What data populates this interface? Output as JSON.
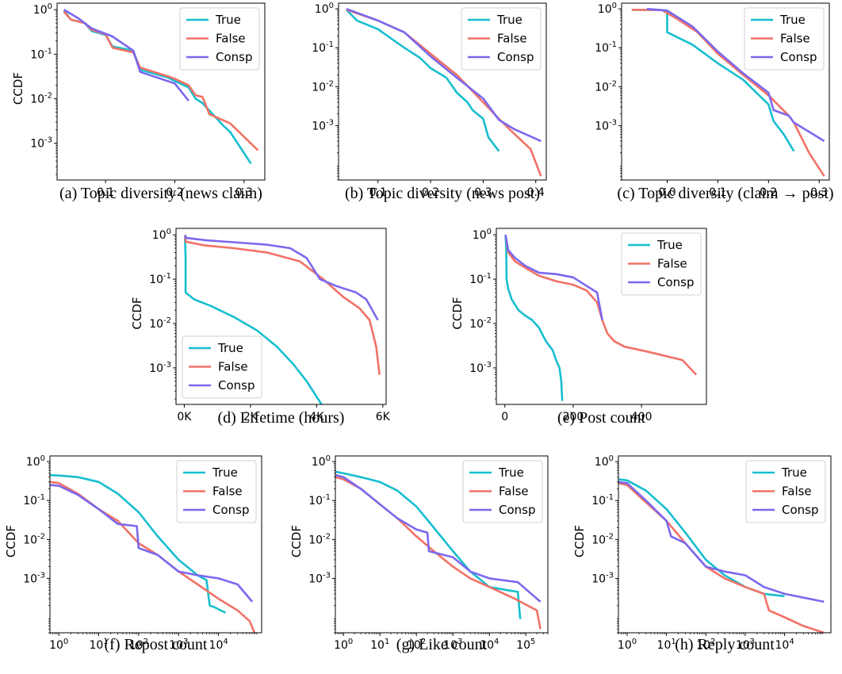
{
  "colors": {
    "True": "#17becf",
    "False": "#f27166",
    "Consp": "#7b68ee"
  },
  "legend_labels": [
    "True",
    "False",
    "Consp"
  ],
  "chart_data": [
    {
      "id": "a",
      "type": "line",
      "caption": "(a) Topic diversity (news claim)",
      "ylabel": "CCDF",
      "xscale": "linear",
      "yscale": "log",
      "xlim": [
        0.03,
        0.33
      ],
      "ylim": [
        0.00015,
        1.4
      ],
      "xticks": [
        0.1,
        0.2,
        0.3
      ],
      "xticklabels": [
        "0.1",
        "0.2",
        "0.3"
      ],
      "yticks": [
        1,
        0.1,
        0.01,
        0.001
      ],
      "yticklabels": [
        "10^0",
        "10^-1",
        "10^-2",
        "10^-3"
      ],
      "legend": "top-right",
      "series": [
        {
          "name": "True",
          "x": [
            0.04,
            0.05,
            0.07,
            0.08,
            0.1,
            0.11,
            0.14,
            0.15,
            0.19,
            0.2,
            0.22,
            0.23,
            0.24,
            0.27,
            0.28,
            0.31
          ],
          "y": [
            0.95,
            0.6,
            0.5,
            0.33,
            0.27,
            0.15,
            0.12,
            0.045,
            0.03,
            0.025,
            0.018,
            0.01,
            0.008,
            0.0025,
            0.0018,
            0.00035
          ]
        },
        {
          "name": "False",
          "x": [
            0.04,
            0.05,
            0.07,
            0.08,
            0.1,
            0.11,
            0.14,
            0.15,
            0.19,
            0.2,
            0.22,
            0.23,
            0.24,
            0.25,
            0.28,
            0.32
          ],
          "y": [
            0.9,
            0.6,
            0.5,
            0.35,
            0.28,
            0.14,
            0.11,
            0.05,
            0.032,
            0.028,
            0.02,
            0.012,
            0.011,
            0.0045,
            0.0028,
            0.0007
          ]
        },
        {
          "name": "Consp",
          "x": [
            0.04,
            0.06,
            0.08,
            0.11,
            0.14,
            0.15,
            0.18,
            0.2,
            0.22
          ],
          "y": [
            1.0,
            0.65,
            0.38,
            0.25,
            0.12,
            0.04,
            0.028,
            0.022,
            0.009
          ]
        }
      ]
    },
    {
      "id": "b",
      "type": "line",
      "caption": "(b) Topic diversity (news post)",
      "ylabel": "",
      "xscale": "linear",
      "yscale": "log",
      "xlim": [
        0.025,
        0.42
      ],
      "ylim": [
        4e-05,
        1.4
      ],
      "xticks": [
        0.1,
        0.2,
        0.3,
        0.4
      ],
      "xticklabels": [
        "0.1",
        "0.2",
        "0.3",
        "0.4"
      ],
      "yticks": [
        1,
        0.1,
        0.01,
        0.001
      ],
      "yticklabels": [
        "10^0",
        "10^-1",
        "10^-2",
        "10^-3"
      ],
      "legend": "top-right",
      "series": [
        {
          "name": "True",
          "x": [
            0.04,
            0.06,
            0.1,
            0.15,
            0.18,
            0.2,
            0.23,
            0.25,
            0.27,
            0.28,
            0.3,
            0.31,
            0.33
          ],
          "y": [
            0.95,
            0.5,
            0.3,
            0.1,
            0.055,
            0.03,
            0.017,
            0.007,
            0.004,
            0.0025,
            0.0015,
            0.0005,
            0.00022
          ]
        },
        {
          "name": "False",
          "x": [
            0.04,
            0.1,
            0.15,
            0.2,
            0.25,
            0.3,
            0.33,
            0.36,
            0.39,
            0.41
          ],
          "y": [
            0.95,
            0.5,
            0.25,
            0.07,
            0.02,
            0.004,
            0.0015,
            0.0006,
            0.00025,
            5e-05
          ]
        },
        {
          "name": "Consp",
          "x": [
            0.04,
            0.1,
            0.15,
            0.2,
            0.25,
            0.3,
            0.33,
            0.36,
            0.41
          ],
          "y": [
            1.0,
            0.5,
            0.25,
            0.06,
            0.017,
            0.005,
            0.0014,
            0.0008,
            0.0004
          ]
        }
      ]
    },
    {
      "id": "c",
      "type": "line",
      "caption": "(c) Topic diversity (claim → post)",
      "ylabel": "",
      "xscale": "linear",
      "yscale": "log",
      "xlim": [
        -0.09,
        0.32
      ],
      "ylim": [
        4e-05,
        1.4
      ],
      "xticks": [
        0.0,
        0.1,
        0.2,
        0.3
      ],
      "xticklabels": [
        "0.0",
        "0.1",
        "0.2",
        "0.3"
      ],
      "yticks": [
        1,
        0.1,
        0.01,
        0.001
      ],
      "yticklabels": [
        "10^0",
        "10^-1",
        "10^-2",
        "10^-3"
      ],
      "legend": "top-right",
      "series": [
        {
          "name": "True",
          "x": [
            -0.07,
            -0.01,
            0.0,
            0.0,
            0.05,
            0.1,
            0.15,
            0.2,
            0.21,
            0.23,
            0.25
          ],
          "y": [
            0.95,
            0.93,
            0.9,
            0.25,
            0.12,
            0.04,
            0.015,
            0.0035,
            0.0013,
            0.0006,
            0.00022
          ]
        },
        {
          "name": "False",
          "x": [
            -0.07,
            -0.01,
            0.02,
            0.06,
            0.1,
            0.15,
            0.2,
            0.24,
            0.25,
            0.28,
            0.31
          ],
          "y": [
            0.95,
            0.93,
            0.55,
            0.25,
            0.07,
            0.02,
            0.006,
            0.0018,
            0.0012,
            0.0002,
            5e-05
          ]
        },
        {
          "name": "Consp",
          "x": [
            -0.04,
            0.0,
            0.05,
            0.1,
            0.15,
            0.2,
            0.21,
            0.24,
            0.25,
            0.31
          ],
          "y": [
            1.0,
            0.9,
            0.35,
            0.08,
            0.022,
            0.007,
            0.0025,
            0.0018,
            0.0012,
            0.0004
          ]
        }
      ]
    },
    {
      "id": "d",
      "type": "line",
      "caption": "(d) Lifetime (hours)",
      "ylabel": "CCDF",
      "xscale": "linear",
      "yscale": "log",
      "xlim": [
        -250,
        6100
      ],
      "ylim": [
        0.00015,
        1.4
      ],
      "xticks": [
        0,
        2000,
        4000,
        6000
      ],
      "xticklabels": [
        "0K",
        "2K",
        "4K",
        "6K"
      ],
      "yticks": [
        1,
        0.1,
        0.01,
        0.001
      ],
      "yticklabels": [
        "10^0",
        "10^-1",
        "10^-2",
        "10^-3"
      ],
      "legend": "bottom-left",
      "series": [
        {
          "name": "True",
          "x": [
            20,
            40,
            40,
            300,
            800,
            1500,
            2200,
            2800,
            3300,
            3700,
            4150
          ],
          "y": [
            0.9,
            0.3,
            0.05,
            0.035,
            0.025,
            0.014,
            0.007,
            0.003,
            0.0012,
            0.0005,
            0.00015
          ]
        },
        {
          "name": "False",
          "x": [
            20,
            50,
            600,
            1500,
            2500,
            3500,
            4200,
            4800,
            5300,
            5600,
            5800,
            5900
          ],
          "y": [
            0.95,
            0.7,
            0.58,
            0.5,
            0.4,
            0.25,
            0.1,
            0.04,
            0.022,
            0.012,
            0.003,
            0.0007
          ]
        },
        {
          "name": "Consp",
          "x": [
            20,
            60,
            700,
            1500,
            2500,
            3200,
            3700,
            4100,
            4600,
            5200,
            5500,
            5850
          ],
          "y": [
            1.0,
            0.85,
            0.75,
            0.68,
            0.6,
            0.5,
            0.3,
            0.1,
            0.07,
            0.05,
            0.035,
            0.012
          ]
        }
      ]
    },
    {
      "id": "e",
      "type": "line",
      "caption": "(e) Post count",
      "ylabel": "CCDF",
      "xscale": "linear",
      "yscale": "log",
      "xlim": [
        -25,
        590
      ],
      "ylim": [
        0.00015,
        1.4
      ],
      "xticks": [
        0,
        200,
        400
      ],
      "xticklabels": [
        "0",
        "200",
        "400"
      ],
      "yticks": [
        1,
        0.1,
        0.01,
        0.001
      ],
      "yticklabels": [
        "10^0",
        "10^-1",
        "10^-2",
        "10^-3"
      ],
      "legend": "top-right",
      "series": [
        {
          "name": "True",
          "x": [
            2,
            4,
            5,
            10,
            20,
            40,
            60,
            80,
            100,
            120,
            140,
            150,
            160,
            165,
            168
          ],
          "y": [
            1.0,
            0.5,
            0.1,
            0.06,
            0.035,
            0.02,
            0.015,
            0.012,
            0.008,
            0.004,
            0.0025,
            0.0015,
            0.001,
            0.0005,
            0.00018
          ]
        },
        {
          "name": "False",
          "x": [
            2,
            10,
            30,
            60,
            100,
            150,
            200,
            240,
            270,
            285,
            300,
            320,
            350,
            420,
            520,
            560
          ],
          "y": [
            1.0,
            0.4,
            0.25,
            0.18,
            0.12,
            0.09,
            0.075,
            0.055,
            0.03,
            0.012,
            0.006,
            0.004,
            0.003,
            0.0023,
            0.0015,
            0.0007
          ]
        },
        {
          "name": "Consp",
          "x": [
            2,
            10,
            30,
            60,
            100,
            150,
            200,
            240,
            270,
            285
          ],
          "y": [
            1.0,
            0.45,
            0.3,
            0.2,
            0.14,
            0.13,
            0.11,
            0.07,
            0.05,
            0.012
          ]
        }
      ]
    },
    {
      "id": "f",
      "type": "line",
      "caption": "(f) Repost count",
      "ylabel": "CCDF",
      "xscale": "log",
      "yscale": "log",
      "xlim": [
        0.6,
        120000
      ],
      "ylim": [
        4e-05,
        1.4
      ],
      "xticks": [
        1,
        10,
        100,
        1000,
        10000
      ],
      "xticklabels": [
        "10^0",
        "10^1",
        "10^2",
        "10^3",
        "10^4"
      ],
      "yticks": [
        1,
        0.1,
        0.01,
        0.001
      ],
      "yticklabels": [
        "10^0",
        "10^-1",
        "10^-2",
        "10^-3"
      ],
      "legend": "top-right",
      "series": [
        {
          "name": "True",
          "x": [
            0.6,
            1,
            3,
            10,
            30,
            100,
            300,
            1000,
            3000,
            5000,
            6000,
            8000,
            15000
          ],
          "y": [
            0.45,
            0.44,
            0.4,
            0.3,
            0.15,
            0.05,
            0.012,
            0.003,
            0.0012,
            0.0009,
            0.0002,
            0.00018,
            0.00013
          ]
        },
        {
          "name": "False",
          "x": [
            0.6,
            1,
            3,
            10,
            30,
            100,
            300,
            1000,
            3000,
            10000,
            30000,
            60000,
            80000
          ],
          "y": [
            0.3,
            0.28,
            0.15,
            0.06,
            0.03,
            0.008,
            0.004,
            0.0015,
            0.0007,
            0.0003,
            0.00015,
            8e-05,
            4e-05
          ]
        },
        {
          "name": "Consp",
          "x": [
            0.6,
            1,
            3,
            10,
            30,
            90,
            100,
            300,
            1000,
            3000,
            10000,
            30000,
            70000
          ],
          "y": [
            0.25,
            0.24,
            0.14,
            0.06,
            0.025,
            0.022,
            0.006,
            0.004,
            0.0015,
            0.0012,
            0.001,
            0.0007,
            0.00025
          ]
        }
      ]
    },
    {
      "id": "g",
      "type": "line",
      "caption": "(g) Like count",
      "ylabel": "CCDF",
      "xscale": "log",
      "yscale": "log",
      "xlim": [
        0.6,
        400000
      ],
      "ylim": [
        4e-05,
        1.4
      ],
      "xticks": [
        1,
        10,
        100,
        1000,
        10000,
        100000
      ],
      "xticklabels": [
        "10^0",
        "10^1",
        "10^2",
        "10^3",
        "10^4",
        "10^5"
      ],
      "yticks": [
        1,
        0.1,
        0.01,
        0.001
      ],
      "yticklabels": [
        "10^0",
        "10^-1",
        "10^-2",
        "10^-3"
      ],
      "legend": "top-right",
      "series": [
        {
          "name": "True",
          "x": [
            0.6,
            1,
            3,
            10,
            30,
            100,
            300,
            1000,
            3000,
            10000,
            30000,
            60000,
            70000
          ],
          "y": [
            0.55,
            0.5,
            0.4,
            0.3,
            0.18,
            0.07,
            0.02,
            0.005,
            0.0015,
            0.0006,
            0.0005,
            0.00045,
            9e-05
          ]
        },
        {
          "name": "False",
          "x": [
            0.6,
            1,
            3,
            10,
            30,
            100,
            300,
            1000,
            3000,
            10000,
            50000,
            200000,
            250000
          ],
          "y": [
            0.4,
            0.35,
            0.2,
            0.08,
            0.035,
            0.012,
            0.005,
            0.002,
            0.001,
            0.0006,
            0.0003,
            0.00015,
            5e-05
          ]
        },
        {
          "name": "Consp",
          "x": [
            0.6,
            1,
            3,
            10,
            30,
            100,
            200,
            220,
            1000,
            3000,
            10000,
            60000,
            250000
          ],
          "y": [
            0.45,
            0.4,
            0.2,
            0.08,
            0.035,
            0.018,
            0.015,
            0.005,
            0.0035,
            0.0015,
            0.001,
            0.0008,
            0.00025
          ]
        }
      ]
    },
    {
      "id": "h",
      "type": "line",
      "caption": "(h) Reply count",
      "ylabel": "CCDF",
      "xscale": "log",
      "yscale": "log",
      "xlim": [
        0.6,
        150000
      ],
      "ylim": [
        4e-05,
        1.4
      ],
      "xticks": [
        1,
        10,
        100,
        1000,
        10000
      ],
      "xticklabels": [
        "10^0",
        "10^1",
        "10^2",
        "10^3",
        "10^4"
      ],
      "yticks": [
        1,
        0.1,
        0.01,
        0.001
      ],
      "yticklabels": [
        "10^0",
        "10^-1",
        "10^-2",
        "10^-3"
      ],
      "legend": "top-right",
      "series": [
        {
          "name": "True",
          "x": [
            0.6,
            1,
            3,
            10,
            30,
            100,
            300,
            1000,
            3000,
            10000
          ],
          "y": [
            0.35,
            0.33,
            0.18,
            0.06,
            0.015,
            0.003,
            0.0012,
            0.0006,
            0.0004,
            0.00035
          ]
        },
        {
          "name": "False",
          "x": [
            0.6,
            1,
            3,
            10,
            30,
            100,
            300,
            1000,
            3000,
            4000,
            10000,
            30000,
            100000
          ],
          "y": [
            0.28,
            0.25,
            0.09,
            0.03,
            0.008,
            0.002,
            0.001,
            0.0006,
            0.0004,
            0.00015,
            0.0001,
            6e-05,
            4e-05
          ]
        },
        {
          "name": "Consp",
          "x": [
            0.6,
            1,
            3,
            10,
            13,
            30,
            100,
            300,
            1000,
            3000,
            10000,
            100000
          ],
          "y": [
            0.3,
            0.28,
            0.1,
            0.03,
            0.012,
            0.008,
            0.002,
            0.0015,
            0.0012,
            0.0006,
            0.0004,
            0.00025
          ]
        }
      ]
    }
  ]
}
